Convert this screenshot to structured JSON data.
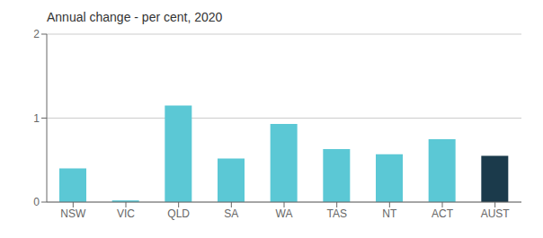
{
  "chart_data": {
    "type": "bar",
    "title": "Annual change - per cent, 2020",
    "categories": [
      "NSW",
      "VIC",
      "QLD",
      "SA",
      "WA",
      "TAS",
      "NT",
      "ACT",
      "AUST"
    ],
    "values": [
      0.4,
      0.02,
      1.15,
      0.52,
      0.93,
      0.63,
      0.57,
      0.75,
      0.55
    ],
    "colors": [
      "#5bc8d5",
      "#5bc8d5",
      "#5bc8d5",
      "#5bc8d5",
      "#5bc8d5",
      "#5bc8d5",
      "#5bc8d5",
      "#5bc8d5",
      "#1b3a4b"
    ],
    "ylim": [
      0,
      2
    ],
    "yticks": [
      0,
      1,
      2
    ],
    "grid": true
  }
}
